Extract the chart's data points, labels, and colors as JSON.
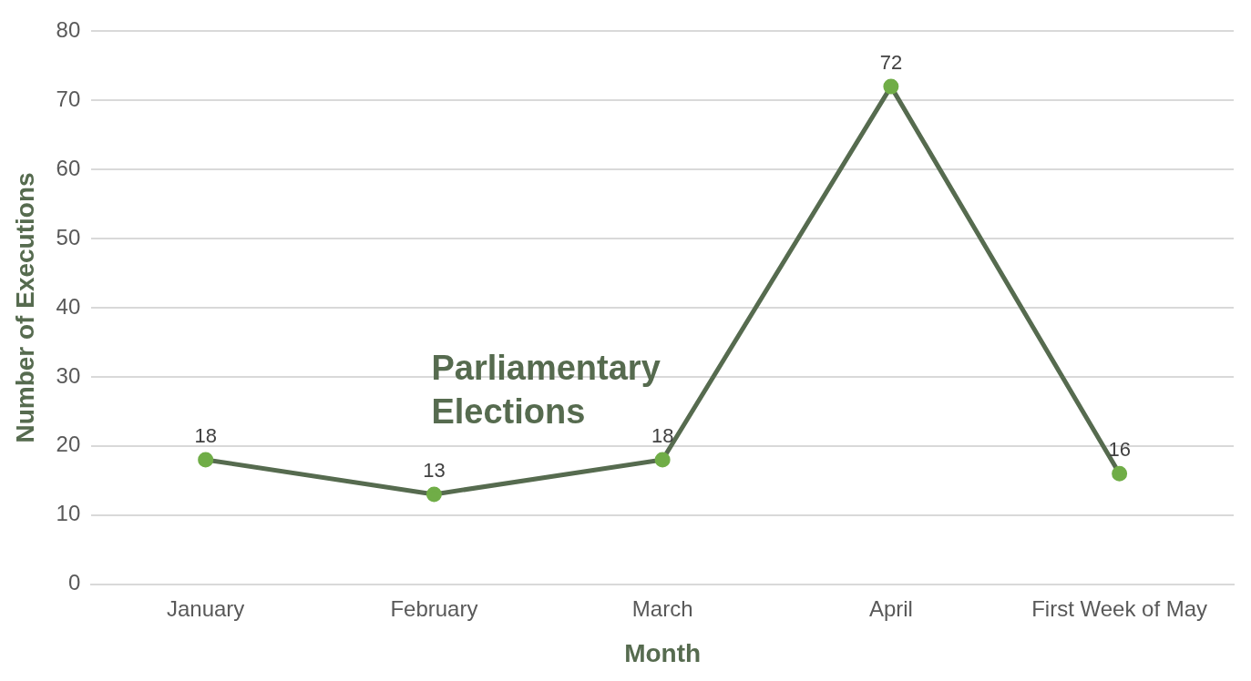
{
  "chart_data": {
    "type": "line",
    "xlabel": "Month",
    "ylabel": "Number of Executions",
    "categories": [
      "January",
      "February",
      "March",
      "April",
      "First Week of May"
    ],
    "series": [
      {
        "color": "#566b4f",
        "values": [
          18,
          13,
          18,
          72,
          16
        ]
      }
    ],
    "ylim": [
      0,
      80
    ],
    "yticks": [
      0,
      10,
      20,
      30,
      40,
      50,
      60,
      70,
      80
    ],
    "grid": "y",
    "legend": false,
    "marker": "circle",
    "line_style": "solid",
    "data_labels": true,
    "annotations": [
      "Parliamentary Elections"
    ]
  }
}
